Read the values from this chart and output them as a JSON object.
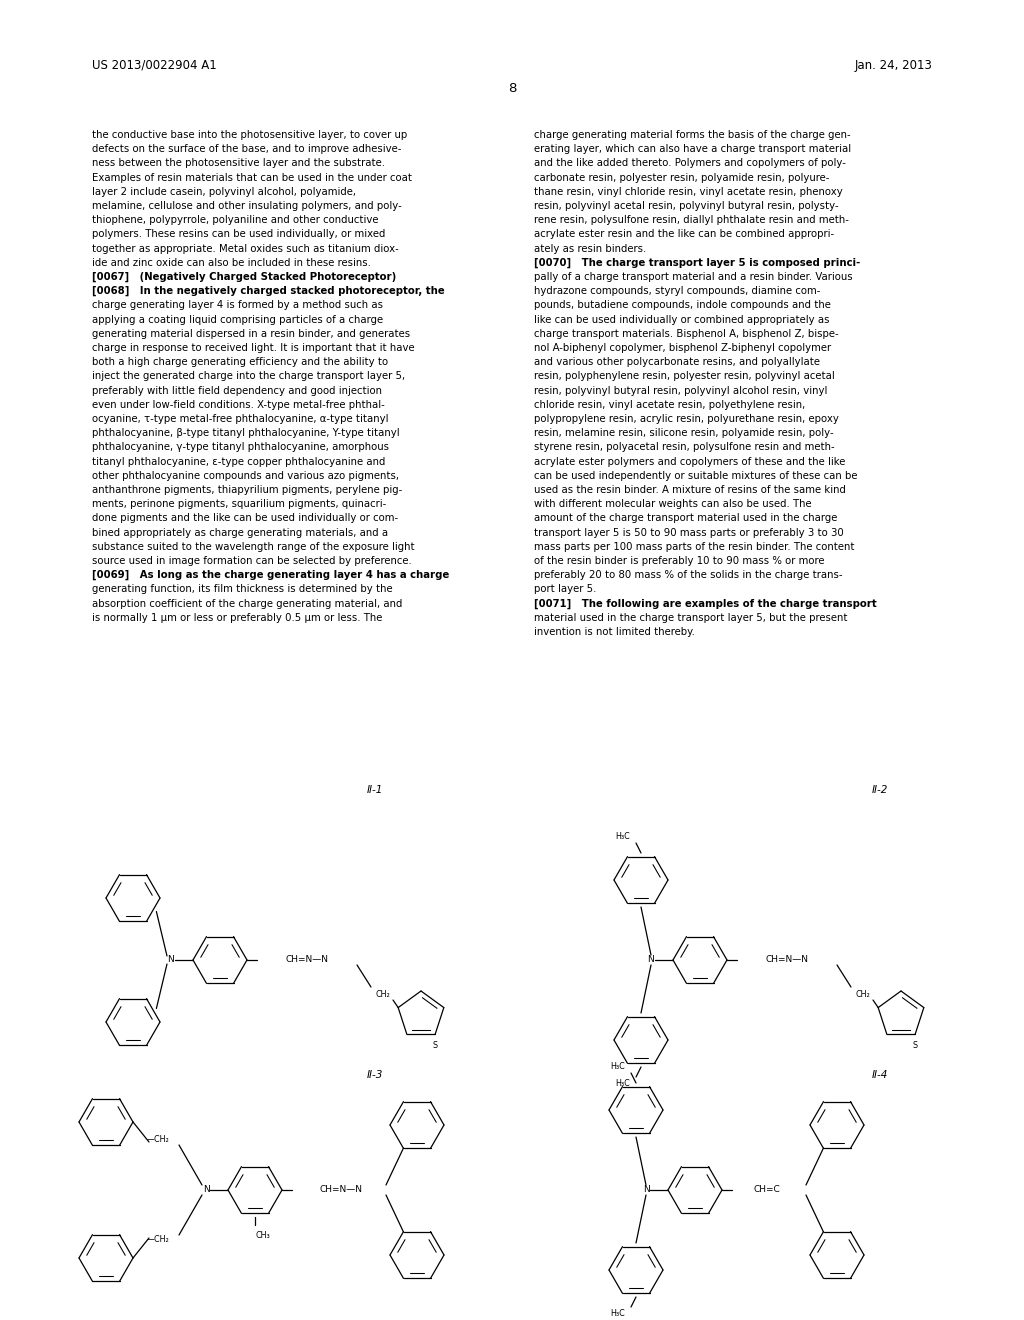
{
  "background_color": "#ffffff",
  "header_left": "US 2013/0022904 A1",
  "header_right": "Jan. 24, 2013",
  "page_number": "8",
  "left_col_lines": [
    "the conductive base into the photosensitive layer, to cover up",
    "defects on the surface of the base, and to improve adhesive-",
    "ness between the photosensitive layer and the substrate.",
    "Examples of resin materials that can be used in the under coat",
    "layer 2 include casein, polyvinyl alcohol, polyamide,",
    "melamine, cellulose and other insulating polymers, and poly-",
    "thiophene, polypyrrole, polyaniline and other conductive",
    "polymers. These resins can be used individually, or mixed",
    "together as appropriate. Metal oxides such as titanium diox-",
    "ide and zinc oxide can also be included in these resins.",
    "[0067]   (Negatively Charged Stacked Photoreceptor)",
    "[0068]   In the negatively charged stacked photoreceptor, the",
    "charge generating layer 4 is formed by a method such as",
    "applying a coating liquid comprising particles of a charge",
    "generating material dispersed in a resin binder, and generates",
    "charge in response to received light. It is important that it have",
    "both a high charge generating efficiency and the ability to",
    "inject the generated charge into the charge transport layer 5,",
    "preferably with little field dependency and good injection",
    "even under low-field conditions. X-type metal-free phthal-",
    "ocyanine, τ-type metal-free phthalocyanine, α-type titanyl",
    "phthalocyanine, β-type titanyl phthalocyanine, Y-type titanyl",
    "phthalocyanine, γ-type titanyl phthalocyanine, amorphous",
    "titanyl phthalocyanine, ε-type copper phthalocyanine and",
    "other phthalocyanine compounds and various azo pigments,",
    "anthanthrone pigments, thiapyrilium pigments, perylene pig-",
    "ments, perinone pigments, squarilium pigments, quinacri-",
    "done pigments and the like can be used individually or com-",
    "bined appropriately as charge generating materials, and a",
    "substance suited to the wavelength range of the exposure light",
    "source used in image formation can be selected by preference.",
    "[0069]   As long as the charge generating layer 4 has a charge",
    "generating function, its film thickness is determined by the",
    "absorption coefficient of the charge generating material, and",
    "is normally 1 μm or less or preferably 0.5 μm or less. The"
  ],
  "right_col_lines": [
    "charge generating material forms the basis of the charge gen-",
    "erating layer, which can also have a charge transport material",
    "and the like added thereto. Polymers and copolymers of poly-",
    "carbonate resin, polyester resin, polyamide resin, polyure-",
    "thane resin, vinyl chloride resin, vinyl acetate resin, phenoxy",
    "resin, polyvinyl acetal resin, polyvinyl butyral resin, polysty-",
    "rene resin, polysulfone resin, diallyl phthalate resin and meth-",
    "acrylate ester resin and the like can be combined appropri-",
    "ately as resin binders.",
    "[0070]   The charge transport layer 5 is composed princi-",
    "pally of a charge transport material and a resin binder. Various",
    "hydrazone compounds, styryl compounds, diamine com-",
    "pounds, butadiene compounds, indole compounds and the",
    "like can be used individually or combined appropriately as",
    "charge transport materials. Bisphenol A, bisphenol Z, bispe-",
    "nol A-biphenyl copolymer, bisphenol Z-biphenyl copolymer",
    "and various other polycarbonate resins, and polyallylate",
    "resin, polyphenylene resin, polyester resin, polyvinyl acetal",
    "resin, polyvinyl butyral resin, polyvinyl alcohol resin, vinyl",
    "chloride resin, vinyl acetate resin, polyethylene resin,",
    "polypropylene resin, acrylic resin, polyurethane resin, epoxy",
    "resin, melamine resin, silicone resin, polyamide resin, poly-",
    "styrene resin, polyacetal resin, polysulfone resin and meth-",
    "acrylate ester polymers and copolymers of these and the like",
    "can be used independently or suitable mixtures of these can be",
    "used as the resin binder. A mixture of resins of the same kind",
    "with different molecular weights can also be used. The",
    "amount of the charge transport material used in the charge",
    "transport layer 5 is 50 to 90 mass parts or preferably 3 to 30",
    "mass parts per 100 mass parts of the resin binder. The content",
    "of the resin binder is preferably 10 to 90 mass % or more",
    "preferably 20 to 80 mass % of the solids in the charge trans-",
    "port layer 5.",
    "[0071]   The following are examples of the charge transport",
    "material used in the charge transport layer 5, but the present",
    "invention is not limited thereby."
  ]
}
